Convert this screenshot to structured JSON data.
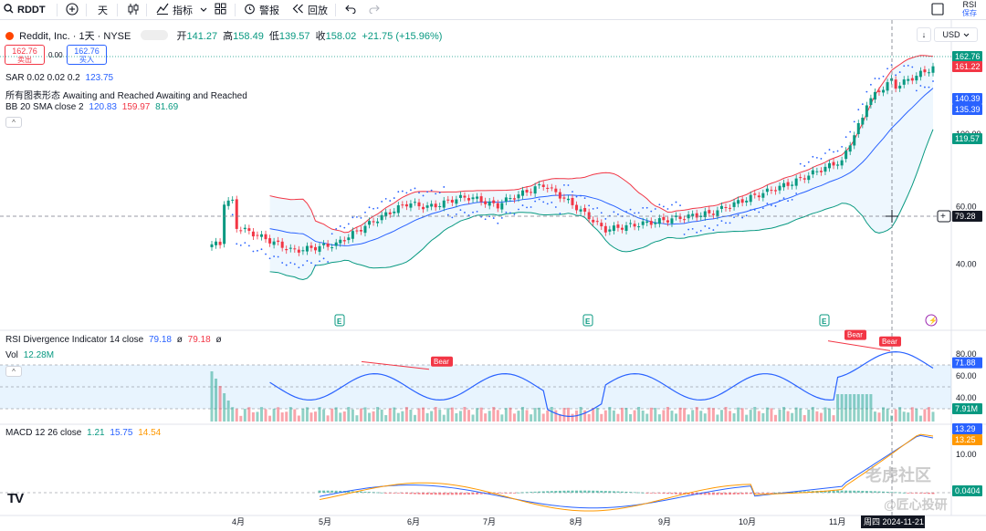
{
  "toolbar": {
    "symbol": "RDDT",
    "interval": "天",
    "indicators_label": "指标",
    "alert_label": "警报",
    "replay_label": "回放",
    "right_top": "RSI",
    "right_bottom": "保存"
  },
  "legend": {
    "title": "Reddit, Inc. · 1天 · NYSE",
    "open_label": "开",
    "open": "141.27",
    "high_label": "高",
    "high": "158.49",
    "low_label": "低",
    "low": "139.57",
    "close_label": "收",
    "close": "158.02",
    "change": "+21.75 (+15.96%)",
    "sell_price": "162.76",
    "sell_label": "卖出",
    "spread": "0.00",
    "buy_price": "162.76",
    "buy_label": "买入",
    "sar_name": "SAR 0.02 0.02 0.2",
    "sar_value": "123.75",
    "pattern": "所有图表形态 Awaiting and Reached Awaiting and Reached",
    "bb_name": "BB 20 SMA close 2",
    "bb_basis": "120.83",
    "bb_upper": "159.97",
    "bb_lower": "81.69",
    "currency": "USD"
  },
  "rsi_pane": {
    "name": "RSI Divergence Indicator 14 close",
    "v1": "79.18",
    "d1": "ø",
    "v2": "79.18",
    "d2": "ø",
    "vol_name": "Vol",
    "vol_value": "12.28M",
    "bear_label": "Bear"
  },
  "macd_pane": {
    "name": "MACD 12 26 close",
    "v1": "1.21",
    "v2": "15.75",
    "v3": "14.54"
  },
  "price_axis": {
    "ticks": [
      "100.00",
      "60.00",
      "40.00"
    ],
    "badges": [
      {
        "text": "162.76",
        "color": "#089981"
      },
      {
        "text": "161.22",
        "color": "#f23645"
      },
      {
        "text": "140.39",
        "color": "#2962ff"
      },
      {
        "text": "135.39",
        "color": "#2962ff"
      },
      {
        "text": "119.57",
        "color": "#089981"
      },
      {
        "text": "79.28",
        "color": "#131722"
      }
    ]
  },
  "rsi_axis": {
    "ticks": [
      "80.00",
      "60.00",
      "40.00"
    ],
    "badges": [
      {
        "text": "71.88",
        "color": "#2962ff"
      },
      {
        "text": "7.91M",
        "color": "#089981"
      }
    ]
  },
  "macd_axis": {
    "ticks": [
      "10.00"
    ],
    "badges": [
      {
        "text": "13.29",
        "color": "#2962ff"
      },
      {
        "text": "13.25",
        "color": "#ff9800"
      },
      {
        "text": "0.0404",
        "color": "#089981"
      }
    ]
  },
  "time_axis": {
    "labels": [
      "4月",
      "5月",
      "6月",
      "7月",
      "8月",
      "9月",
      "10月",
      "11月"
    ],
    "cursor_label": "周四 2024-11-21"
  },
  "earnings_marker": "E",
  "watermarks": {
    "line1": "老虎社区",
    "line2": "@匠心投研"
  },
  "logo": "TV",
  "colors": {
    "up": "#089981",
    "down": "#f23645",
    "sma": "#2962ff",
    "upper": "#f23645",
    "lower": "#089981",
    "macd": "#2962ff",
    "signal": "#ff9800"
  }
}
